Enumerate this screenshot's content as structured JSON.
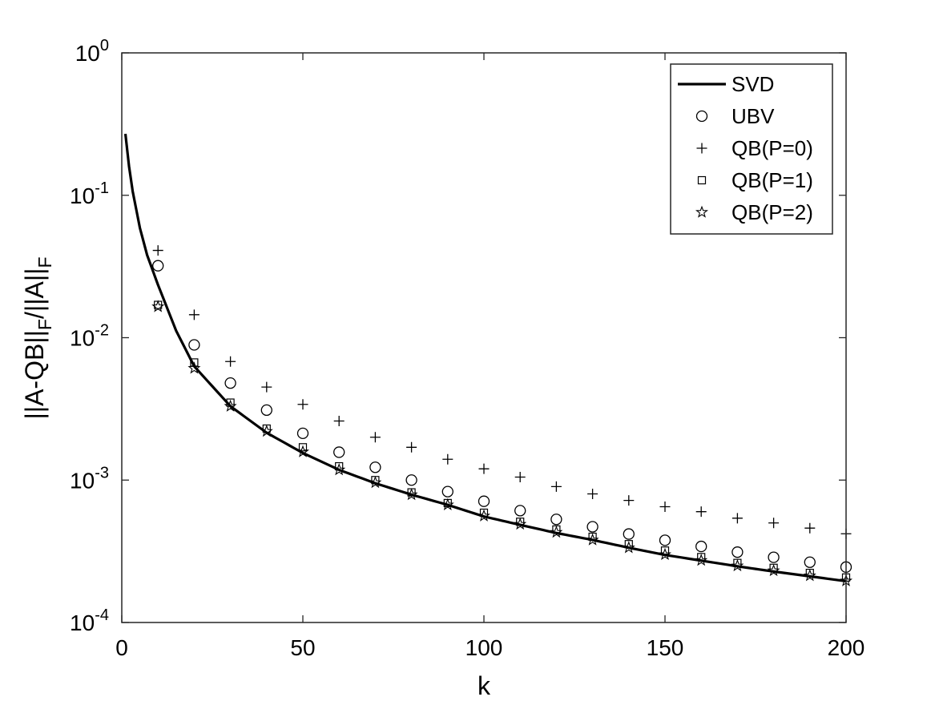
{
  "chart_data": {
    "type": "scatter",
    "xlabel": "k",
    "ylabel": "||A-QB||F/||A||F",
    "ylabel_parts": {
      "a": "||A-QB||",
      "sub1": "F",
      "b": "/||A||",
      "sub2": "F"
    },
    "xlim": [
      0,
      200
    ],
    "ylim": [
      0.0001,
      1
    ],
    "yscale": "log",
    "grid": false,
    "legend_position": "top-right",
    "xticks": [
      0,
      50,
      100,
      150,
      200
    ],
    "xtick_labels": [
      "0",
      "50",
      "100",
      "150",
      "200"
    ],
    "yticks": [
      0.0001,
      0.001,
      0.01,
      0.1,
      1
    ],
    "ytick_labels": [
      {
        "base": "10",
        "exp": "-4"
      },
      {
        "base": "10",
        "exp": "-3"
      },
      {
        "base": "10",
        "exp": "-2"
      },
      {
        "base": "10",
        "exp": "-1"
      },
      {
        "base": "10",
        "exp": "0"
      }
    ],
    "series": [
      {
        "name": "SVD",
        "style": "line",
        "x": [
          1,
          2,
          3,
          5,
          7,
          10,
          15,
          20,
          30,
          40,
          50,
          60,
          70,
          80,
          90,
          100,
          110,
          120,
          130,
          140,
          150,
          160,
          170,
          180,
          190,
          200
        ],
        "y": [
          0.27,
          0.16,
          0.107,
          0.059,
          0.038,
          0.0235,
          0.0112,
          0.0063,
          0.0033,
          0.00215,
          0.00155,
          0.00118,
          0.00095,
          0.00079,
          0.00067,
          0.000555,
          0.000485,
          0.000425,
          0.00038,
          0.000335,
          0.000298,
          0.000272,
          0.000248,
          0.000228,
          0.000211,
          0.000195
        ]
      },
      {
        "name": "UBV",
        "style": "circle",
        "x": [
          10,
          20,
          30,
          40,
          50,
          60,
          70,
          80,
          90,
          100,
          110,
          120,
          130,
          140,
          150,
          160,
          170,
          180,
          190,
          200
        ],
        "y": [
          0.032,
          0.0089,
          0.0048,
          0.0031,
          0.00213,
          0.00157,
          0.00123,
          0.001,
          0.00083,
          0.00071,
          0.00061,
          0.00053,
          0.00047,
          0.000418,
          0.000378,
          0.000342,
          0.000312,
          0.000287,
          0.000265,
          0.000245
        ]
      },
      {
        "name": "QB(P=0)",
        "style": "plus",
        "x": [
          10,
          20,
          30,
          40,
          50,
          60,
          70,
          80,
          90,
          100,
          110,
          120,
          130,
          140,
          150,
          160,
          170,
          180,
          190,
          200
        ],
        "y": [
          0.041,
          0.0145,
          0.0068,
          0.0045,
          0.0034,
          0.0026,
          0.002,
          0.0017,
          0.0014,
          0.0012,
          0.00105,
          0.0009,
          0.0008,
          0.00072,
          0.00065,
          0.0006,
          0.00054,
          0.0005,
          0.00046,
          0.00042
        ]
      },
      {
        "name": "QB(P=1)",
        "style": "square",
        "x": [
          10,
          20,
          30,
          40,
          50,
          60,
          70,
          80,
          90,
          100,
          110,
          120,
          130,
          140,
          150,
          160,
          170,
          180,
          190,
          200
        ],
        "y": [
          0.017,
          0.0067,
          0.0035,
          0.0023,
          0.0017,
          0.00125,
          0.001,
          0.00082,
          0.00069,
          0.00059,
          0.00051,
          0.00045,
          0.0004,
          0.000355,
          0.00032,
          0.000288,
          0.000262,
          0.000242,
          0.000223,
          0.000207
        ]
      },
      {
        "name": "QB(P=2)",
        "style": "star",
        "x": [
          10,
          20,
          30,
          40,
          50,
          60,
          70,
          80,
          90,
          100,
          110,
          120,
          130,
          140,
          150,
          160,
          170,
          180,
          190,
          200
        ],
        "y": [
          0.0165,
          0.0061,
          0.0033,
          0.0022,
          0.00158,
          0.00118,
          0.00096,
          0.00079,
          0.00067,
          0.00056,
          0.00049,
          0.00043,
          0.00038,
          0.000335,
          0.0003,
          0.000273,
          0.00025,
          0.000231,
          0.000213,
          0.000196
        ]
      }
    ]
  }
}
